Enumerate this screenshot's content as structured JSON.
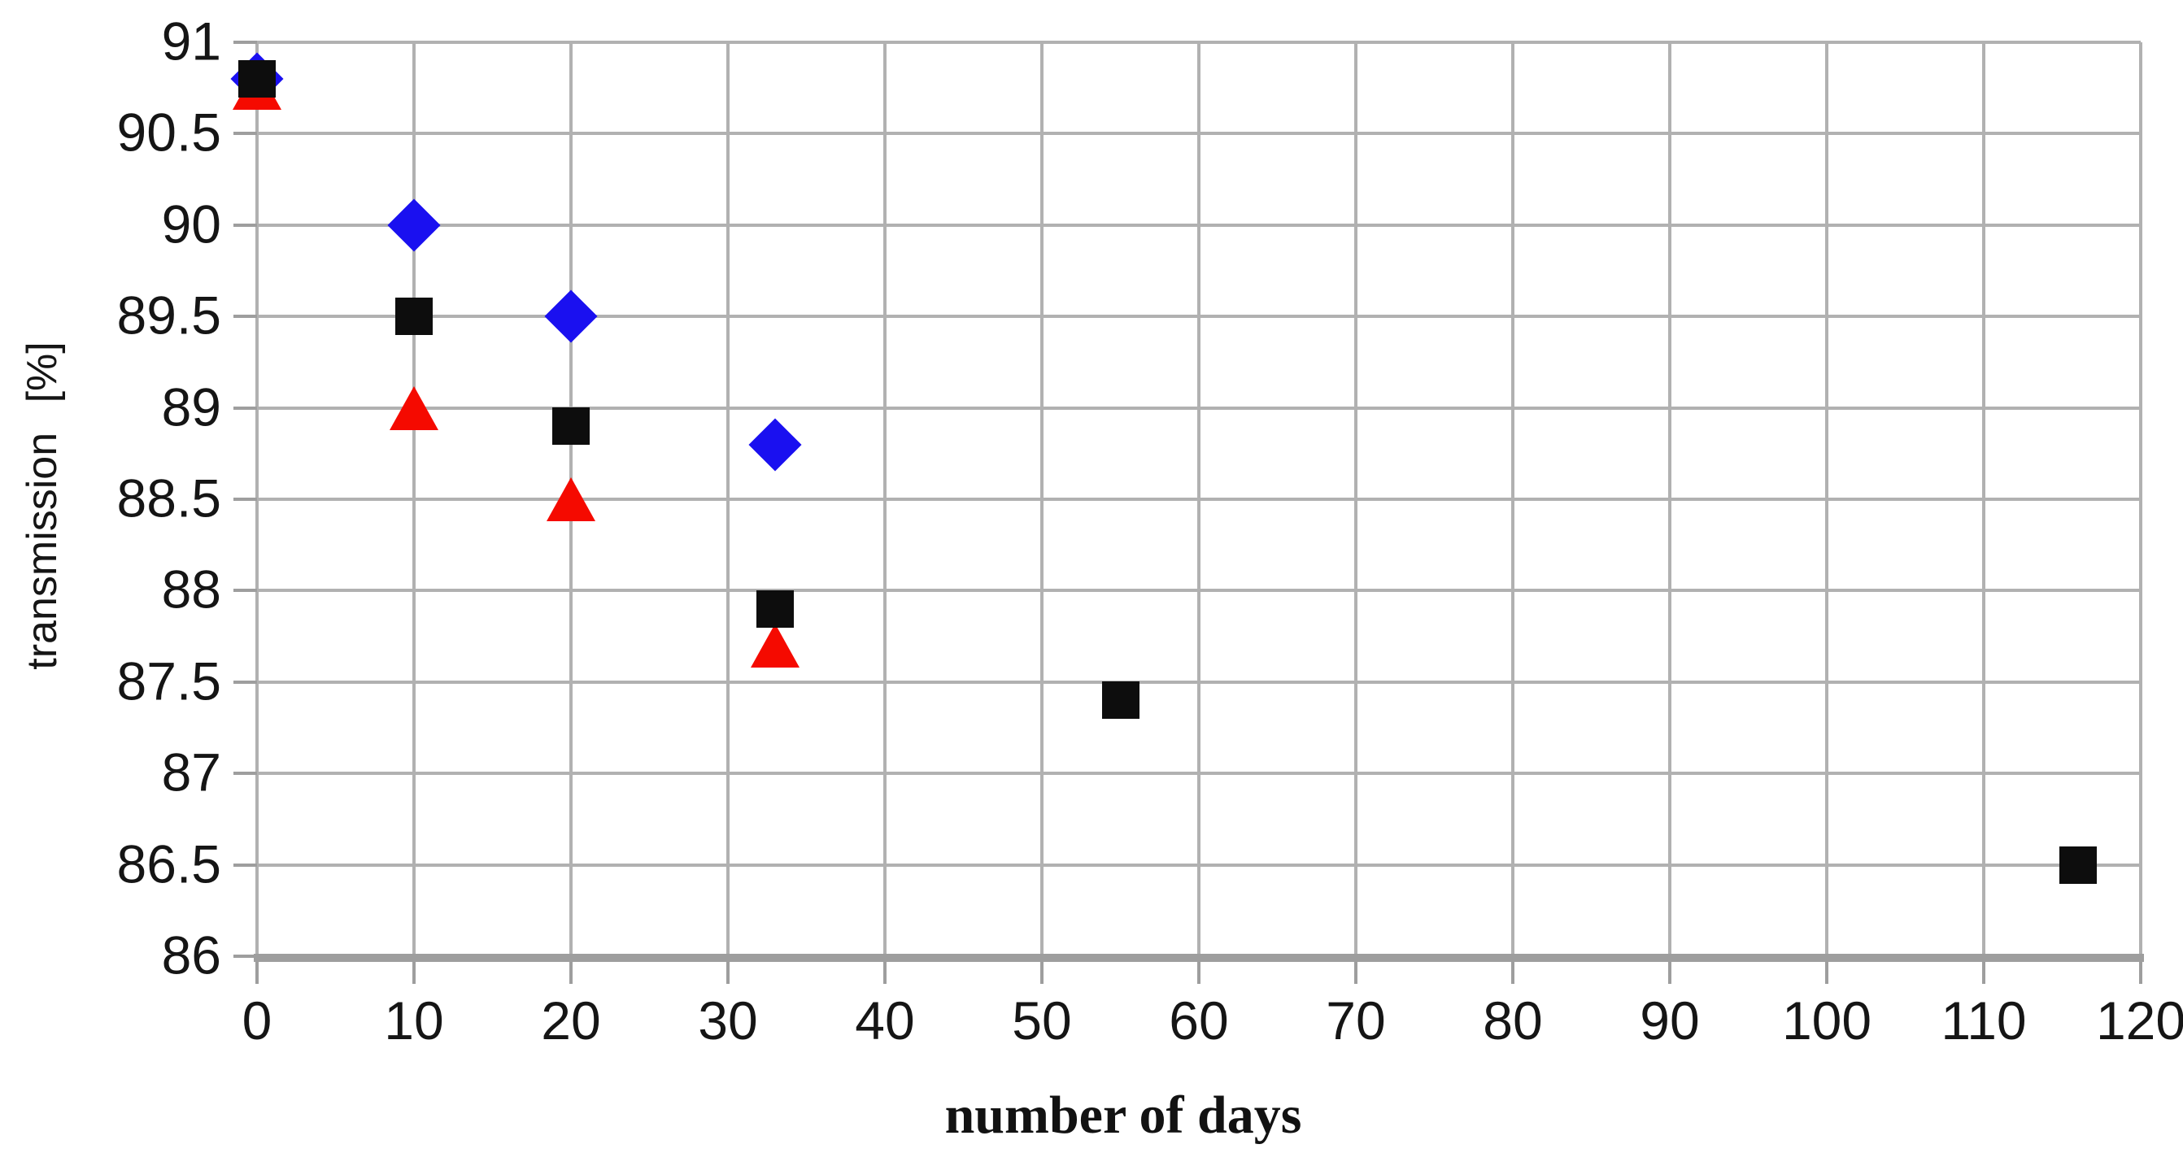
{
  "chart_data": {
    "type": "scatter",
    "title": "",
    "xlabel": "number of days",
    "ylabel": "transmission [%]",
    "xlim": [
      0,
      120
    ],
    "ylim": [
      86,
      91
    ],
    "xticks": [
      0,
      10,
      20,
      30,
      40,
      50,
      60,
      70,
      80,
      90,
      100,
      110,
      120
    ],
    "yticks": [
      86,
      86.5,
      87,
      87.5,
      88,
      88.5,
      89,
      89.5,
      90,
      90.5,
      91
    ],
    "grid": true,
    "legend": false,
    "series": [
      {
        "name": "blue-diamonds",
        "marker": "diamond",
        "color": "#1a10f0",
        "points": [
          [
            0,
            90.8
          ],
          [
            10,
            90
          ],
          [
            20,
            89.5
          ],
          [
            33,
            88.8
          ]
        ]
      },
      {
        "name": "red-triangles",
        "marker": "triangle-up",
        "color": "#f50a00",
        "points": [
          [
            0,
            90.75
          ],
          [
            10,
            89
          ],
          [
            20,
            88.5
          ],
          [
            33,
            87.7
          ]
        ]
      },
      {
        "name": "black-squares",
        "marker": "square",
        "color": "#0d0d0d",
        "points": [
          [
            0,
            90.8
          ],
          [
            10,
            89.5
          ],
          [
            20,
            88.9
          ],
          [
            33,
            87.9
          ],
          [
            55,
            87.4
          ],
          [
            116,
            86.5
          ]
        ]
      }
    ]
  },
  "style_colors": {
    "background": "#ffffff",
    "gridline": "#b1b1b1",
    "axis_line": "#9e9e9e",
    "tick_mark": "#9e9e9e",
    "text": "#151515"
  }
}
